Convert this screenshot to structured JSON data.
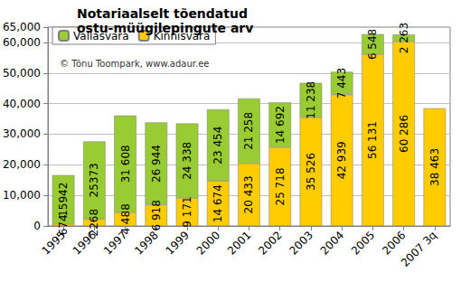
{
  "chart_data": {
    "type": "bar",
    "title": "Notariaalselt tõendatud ostu-müügilepingute arv",
    "annotation": "© Tõnu Toompark, www.adaur.ee",
    "categories": [
      "1995",
      "1996",
      "1997",
      "1998",
      "1999",
      "2000",
      "2001",
      "2002",
      "2003",
      "2004",
      "2005",
      "2006",
      "2007 3q"
    ],
    "series": [
      {
        "name": "Kinnisvara",
        "color": "#ffcc00",
        "values": [
          674,
          2268,
          4488,
          6918,
          9171,
          14674,
          20433,
          25718,
          35526,
          42939,
          56131,
          60286,
          38463
        ],
        "value_labels": [
          "674",
          "2268",
          "4 488",
          "6 918",
          "9 171",
          "14 674",
          "20 433",
          "25 718",
          "35 526",
          "42 939",
          "56 131",
          "60 286",
          "38 463"
        ]
      },
      {
        "name": "Vallasvara",
        "color": "#99cc33",
        "values": [
          15942,
          25373,
          31608,
          26944,
          24338,
          23454,
          21258,
          14692,
          11238,
          7443,
          6548,
          2263,
          null
        ],
        "value_labels": [
          "15942",
          "25373",
          "31 608",
          "26 944",
          "24 338",
          "23 454",
          "21 258",
          "14 692",
          "11 238",
          "7 443",
          "6 548",
          "2 263",
          null
        ]
      }
    ],
    "stacked": true,
    "data_labels": true,
    "legend": "upper left",
    "ylim": [
      0,
      65000
    ],
    "yticks": [
      0,
      10000,
      20000,
      30000,
      40000,
      50000,
      60000
    ],
    "grid": true
  }
}
